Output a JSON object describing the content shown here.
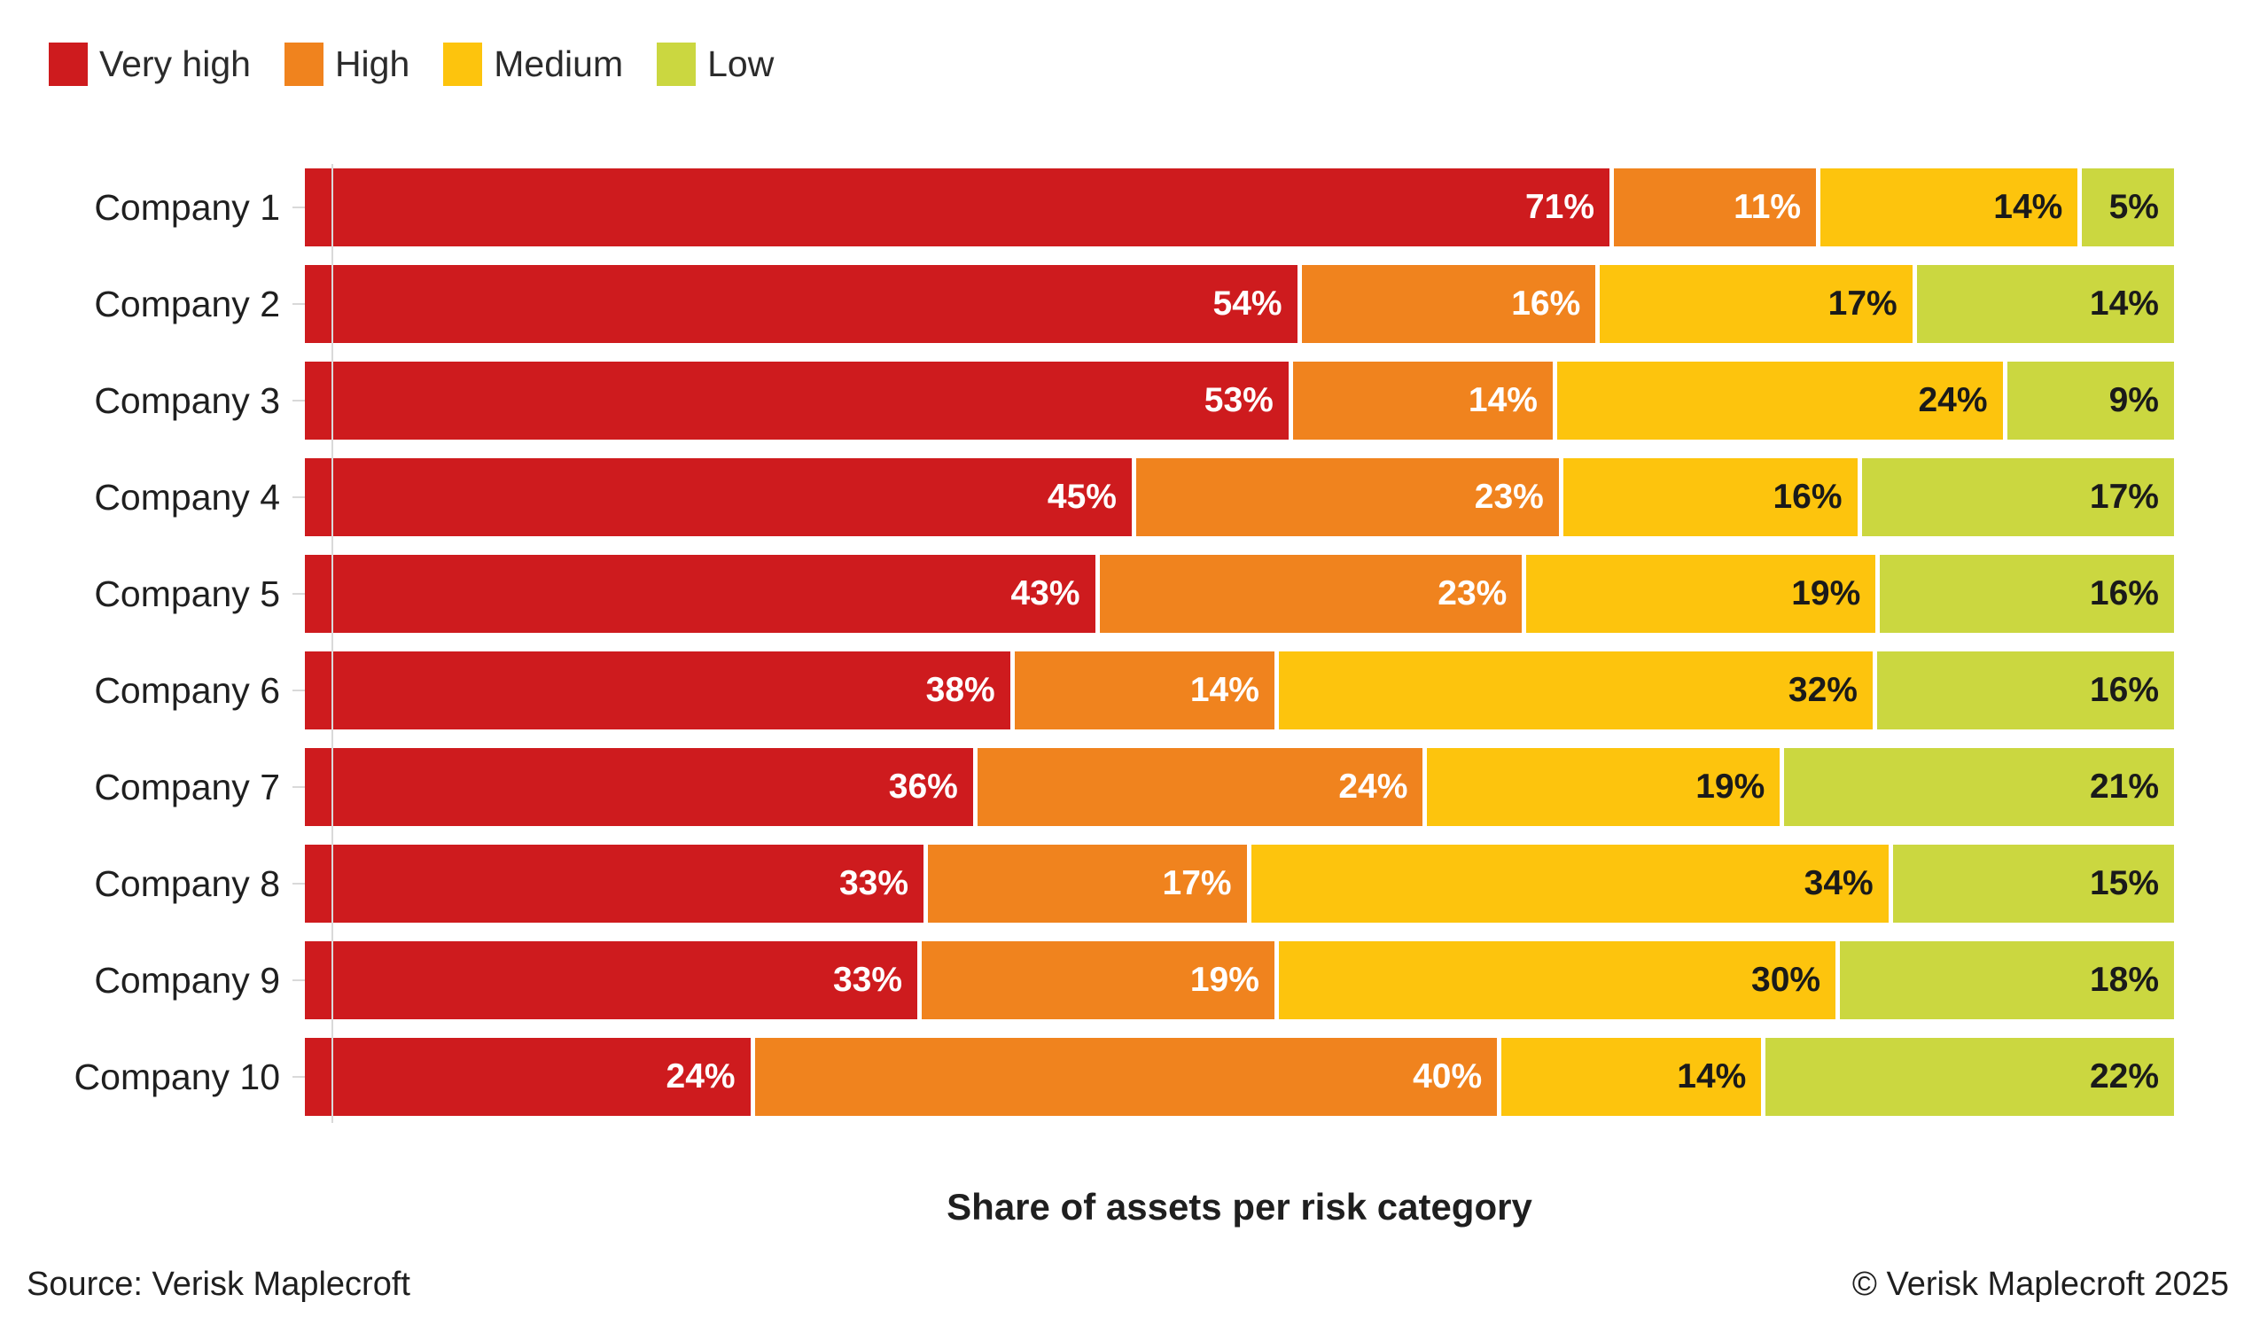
{
  "legend": {
    "items": [
      {
        "label": "Very high",
        "color": "#CE1B1E"
      },
      {
        "label": "High",
        "color": "#F0831E"
      },
      {
        "label": "Medium",
        "color": "#FDC40D"
      },
      {
        "label": "Low",
        "color": "#CBD740"
      }
    ]
  },
  "chart_data": {
    "type": "bar",
    "stacked": true,
    "orientation": "horizontal",
    "normalized_to_100_percent": true,
    "categories": [
      "Company 1",
      "Company 2",
      "Company 3",
      "Company 4",
      "Company 5",
      "Company 6",
      "Company 7",
      "Company 8",
      "Company 9",
      "Company 10"
    ],
    "series": [
      {
        "name": "Very high",
        "color": "#CE1B1E",
        "label_color": "#ffffff",
        "values": [
          71,
          54,
          53,
          45,
          43,
          38,
          36,
          33,
          33,
          24
        ]
      },
      {
        "name": "High",
        "color": "#F0831E",
        "label_color": "#ffffff",
        "values": [
          11,
          16,
          14,
          23,
          23,
          14,
          24,
          17,
          19,
          40
        ]
      },
      {
        "name": "Medium",
        "color": "#FDC40D",
        "label_color": "#1a1a1a",
        "values": [
          14,
          17,
          24,
          16,
          19,
          32,
          19,
          34,
          30,
          14
        ]
      },
      {
        "name": "Low",
        "color": "#CBD740",
        "label_color": "#1a1a1a",
        "values": [
          5,
          14,
          9,
          17,
          16,
          16,
          21,
          15,
          18,
          22
        ]
      }
    ],
    "value_suffix": "%",
    "xlabel": "Share of assets per risk category",
    "legend_position": "top-left",
    "grid": false,
    "axis_color": "#d9d9d9"
  },
  "footer": {
    "source": "Source: Verisk Maplecroft",
    "copyright": "© Verisk Maplecroft 2025"
  }
}
